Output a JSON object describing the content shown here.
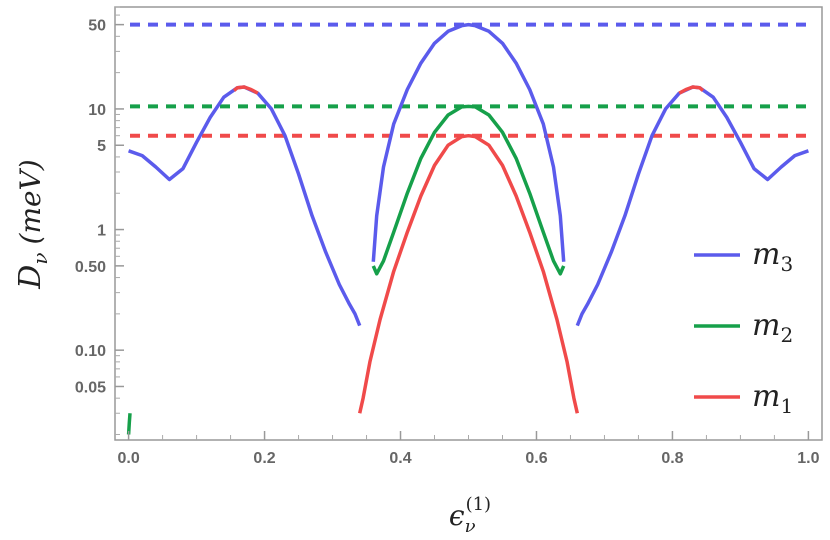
{
  "chart_data": {
    "type": "line",
    "title": "",
    "xlabel": {
      "base": "ϵ",
      "sub": "ν",
      "sup": "(1)"
    },
    "ylabel": {
      "base": "D",
      "sub": "ν",
      "unit": "(meV)"
    },
    "xlim": [
      -0.02,
      1.02
    ],
    "ylim": [
      0.018,
      70
    ],
    "yscale": "log",
    "grid": false,
    "legend_position": "bottom-right",
    "x_ticks": [
      {
        "value": 0.0,
        "label": "0.0"
      },
      {
        "value": 0.2,
        "label": "0.2"
      },
      {
        "value": 0.4,
        "label": "0.4"
      },
      {
        "value": 0.6,
        "label": "0.6"
      },
      {
        "value": 0.8,
        "label": "0.8"
      },
      {
        "value": 1.0,
        "label": "1.0"
      }
    ],
    "y_ticks": [
      {
        "value": 50,
        "label": "50"
      },
      {
        "value": 10,
        "label": "10"
      },
      {
        "value": 5,
        "label": "5"
      },
      {
        "value": 1,
        "label": "1"
      },
      {
        "value": 0.5,
        "label": "0.50"
      },
      {
        "value": 0.1,
        "label": "0.10"
      },
      {
        "value": 0.05,
        "label": "0.05"
      }
    ],
    "y_minor_ticks": [
      0.02,
      0.03,
      0.04,
      0.06,
      0.07,
      0.08,
      0.09,
      0.2,
      0.3,
      0.4,
      0.6,
      0.7,
      0.8,
      0.9,
      2,
      3,
      4,
      6,
      7,
      8,
      9,
      20,
      30,
      40,
      60,
      70
    ],
    "x_minor_ticks": [
      0.05,
      0.1,
      0.15,
      0.25,
      0.3,
      0.35,
      0.45,
      0.5,
      0.55,
      0.65,
      0.7,
      0.75,
      0.85,
      0.9,
      0.95
    ],
    "series": [
      {
        "name": "m_3",
        "label_main": "m",
        "label_sub": "3",
        "color": "#5b5bec",
        "style": "solid",
        "segments": [
          {
            "x": [
              0.0,
              0.02,
              0.04,
              0.06,
              0.08,
              0.1,
              0.12,
              0.14,
              0.16,
              0.17,
              0.19,
              0.21,
              0.23,
              0.25,
              0.27,
              0.29,
              0.31,
              0.325,
              0.333,
              0.34
            ],
            "y": [
              4.5,
              4.1,
              3.3,
              2.6,
              3.2,
              5.3,
              8.5,
              12.5,
              15.0,
              15.2,
              13.5,
              10.0,
              6.0,
              2.9,
              1.3,
              0.65,
              0.35,
              0.24,
              0.2,
              0.16
            ]
          },
          {
            "x": [
              0.36,
              0.365,
              0.375,
              0.39,
              0.41,
              0.43,
              0.45,
              0.47,
              0.49,
              0.5,
              0.51,
              0.53,
              0.55,
              0.57,
              0.59,
              0.61,
              0.625,
              0.635,
              0.64
            ],
            "y": [
              0.54,
              1.3,
              3.3,
              7.5,
              14.5,
              24.0,
              35.0,
              44.0,
              49.0,
              50.0,
              49.0,
              44.0,
              35.0,
              24.0,
              14.5,
              7.5,
              3.3,
              1.3,
              0.54
            ]
          },
          {
            "x": [
              0.66,
              0.667,
              0.675,
              0.69,
              0.71,
              0.73,
              0.75,
              0.77,
              0.79,
              0.81,
              0.83,
              0.84,
              0.86,
              0.88,
              0.9,
              0.92,
              0.94,
              0.96,
              0.98,
              1.0
            ],
            "y": [
              0.16,
              0.2,
              0.24,
              0.35,
              0.65,
              1.3,
              2.9,
              6.0,
              10.0,
              13.5,
              15.2,
              15.0,
              12.5,
              8.5,
              5.3,
              3.2,
              2.6,
              3.3,
              4.1,
              4.5
            ]
          }
        ]
      },
      {
        "name": "m_2",
        "label_main": "m",
        "label_sub": "2",
        "color": "#16a04a",
        "style": "solid",
        "segments": [
          {
            "x": [
              0.36,
              0.365,
              0.375,
              0.39,
              0.41,
              0.43,
              0.45,
              0.47,
              0.49,
              0.5,
              0.51,
              0.53,
              0.55,
              0.57,
              0.59,
              0.61,
              0.625,
              0.635,
              0.64
            ],
            "y": [
              0.5,
              0.43,
              0.55,
              0.95,
              2.0,
              3.9,
              6.4,
              8.9,
              10.4,
              10.5,
              10.4,
              8.9,
              6.4,
              3.9,
              2.0,
              0.95,
              0.55,
              0.43,
              0.5
            ]
          },
          {
            "x": [
              0.0,
              0.001,
              0.002
            ],
            "y": [
              0.02,
              0.025,
              0.03
            ]
          }
        ]
      },
      {
        "name": "m_1",
        "label_main": "m",
        "label_sub": "1",
        "color": "#f04a4a",
        "style": "solid",
        "segments": [
          {
            "x": [
              0.34,
              0.345,
              0.355,
              0.37,
              0.39,
              0.41,
              0.43,
              0.45,
              0.47,
              0.49,
              0.5,
              0.51,
              0.53,
              0.55,
              0.57,
              0.59,
              0.61,
              0.63,
              0.645,
              0.655,
              0.66
            ],
            "y": [
              0.03,
              0.04,
              0.08,
              0.18,
              0.45,
              0.95,
              1.9,
              3.4,
              5.0,
              5.9,
              6.0,
              5.9,
              5.0,
              3.4,
              1.9,
              0.95,
              0.45,
              0.18,
              0.08,
              0.04,
              0.03
            ]
          }
        ]
      }
    ],
    "highlights": [
      {
        "color": "#f04a4a",
        "x": [
          0.155,
          0.16,
          0.17,
          0.18,
          0.19
        ],
        "y": [
          14.2,
          15.0,
          15.2,
          14.5,
          13.5
        ]
      },
      {
        "color": "#f04a4a",
        "x": [
          0.81,
          0.82,
          0.83,
          0.84,
          0.845
        ],
        "y": [
          13.5,
          14.5,
          15.2,
          15.0,
          14.2
        ]
      }
    ],
    "reference_lines": [
      {
        "series": "m_3",
        "y": 50,
        "color": "#5b5bec",
        "style": "dashed"
      },
      {
        "series": "m_2",
        "y": 10.5,
        "color": "#16a04a",
        "style": "dashed"
      },
      {
        "series": "m_1",
        "y": 6.0,
        "color": "#f04a4a",
        "style": "dashed"
      }
    ]
  }
}
